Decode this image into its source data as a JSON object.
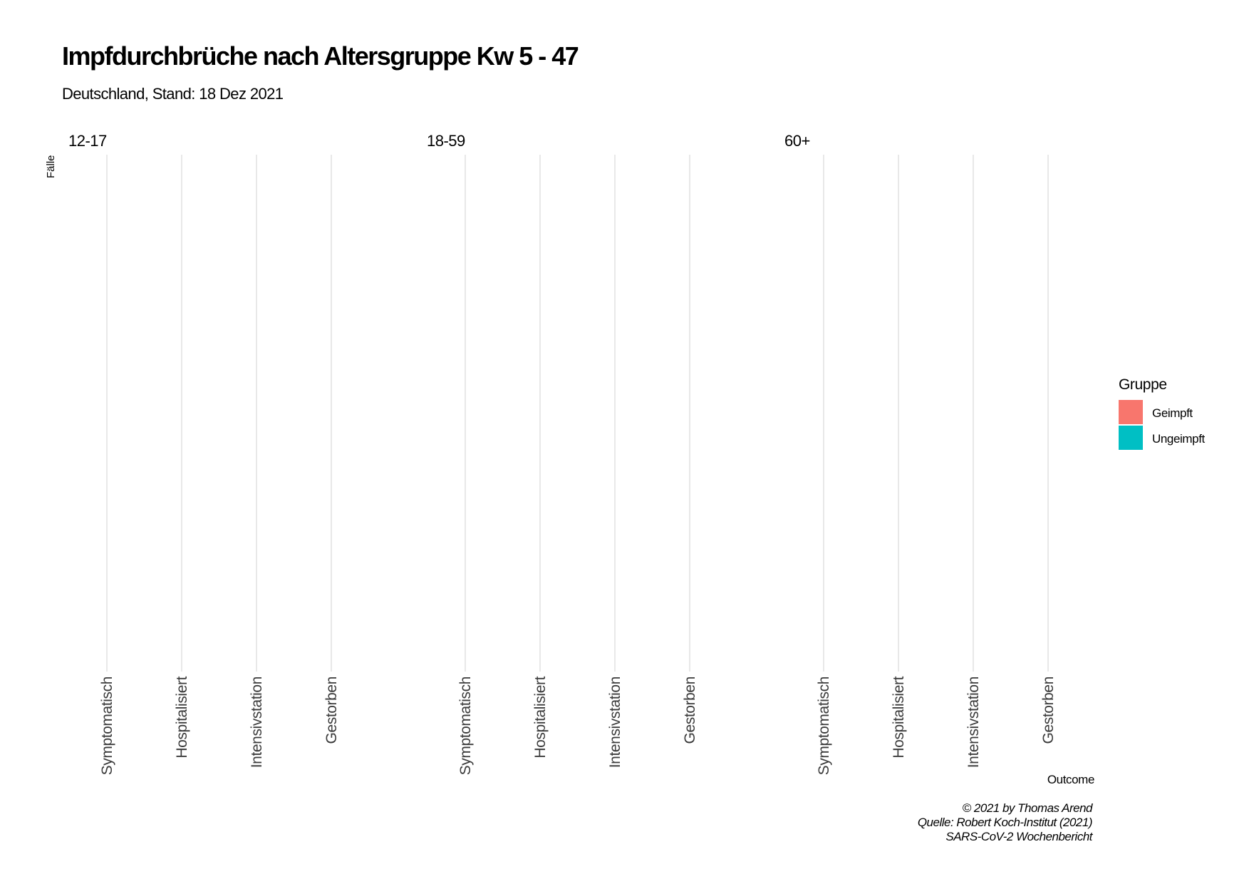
{
  "colors": {
    "background": "#ffffff",
    "grid": "#e0e0e0",
    "geimpft": "#f8766d",
    "ungeimpft": "#00bfc4"
  },
  "chart_data": {
    "type": "bar",
    "title": "Impfdurchbrüche nach Altersgruppe Kw 5 - 47",
    "subtitle": "Deutschland, Stand: 18 Dez 2021",
    "xlabel": "Outcome",
    "ylabel": "Fälle",
    "facets": [
      "12-17",
      "18-59",
      "60+"
    ],
    "categories": [
      "Symptomatisch",
      "Hospitalisiert",
      "Intensivstation",
      "Gestorben"
    ],
    "series": [
      {
        "name": "Geimpft",
        "color": "#f8766d",
        "values": [
          [],
          [],
          []
        ]
      },
      {
        "name": "Ungeimpft",
        "color": "#00bfc4",
        "values": [
          [],
          [],
          []
        ]
      }
    ],
    "legend": {
      "title": "Gruppe",
      "position": "right"
    },
    "grid": true,
    "caption": [
      "© 2021 by Thomas Arend",
      "Quelle: Robert Koch-Institut (2021)",
      "SARS-CoV-2 Wochenbericht"
    ]
  }
}
